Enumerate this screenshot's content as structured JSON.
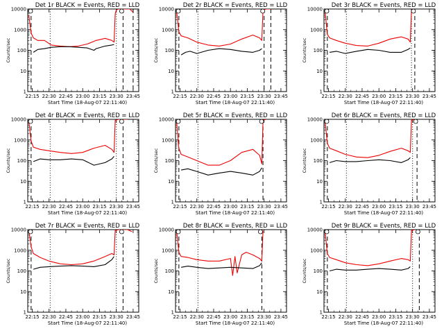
{
  "colors": {
    "events": "#000000",
    "lld": "#ee0000",
    "background": "#ffffff"
  },
  "charts_layout": "3x3 grid",
  "chart_data": [
    {
      "type": "line",
      "title": "Det 1r BLACK = Events, RED = LLD",
      "xlabel": "Start Time (18-Aug-07 22:11:40)",
      "ylabel": "Counts/sec",
      "yscale": "log",
      "ylim": [
        1,
        10000
      ],
      "ytick_labels": [
        "1",
        "10",
        "100",
        "1000",
        "10000"
      ],
      "xtick_labels": [
        "22:15",
        "22:30",
        "22:45",
        "23:00",
        "23:15",
        "23:30",
        "23:45"
      ],
      "series": [
        {
          "name": "LLD",
          "x": [
            "22:12",
            "22:14",
            "22:16",
            "22:20",
            "22:26",
            "22:32",
            "22:40",
            "22:48",
            "22:56",
            "23:04",
            "23:12",
            "23:20",
            "23:26",
            "23:28",
            "23:29",
            "23:30",
            "23:32",
            "23:36",
            "23:42",
            "23:45"
          ],
          "values": [
            5000,
            700,
            400,
            300,
            300,
            180,
            160,
            150,
            160,
            200,
            300,
            380,
            300,
            250,
            6000,
            9000,
            10000,
            10000,
            10000,
            7000
          ]
        },
        {
          "name": "Events",
          "x": [
            "22:16",
            "22:20",
            "22:26",
            "22:32",
            "22:40",
            "22:48",
            "22:56",
            "23:04",
            "23:10",
            "23:12",
            "23:20",
            "23:26",
            "23:28"
          ],
          "values": [
            80,
            110,
            120,
            140,
            150,
            150,
            140,
            130,
            100,
            120,
            160,
            180,
            190
          ]
        }
      ],
      "vlines_dashed": [
        "22:14",
        "23:36",
        "23:45"
      ],
      "vlines_dotted": [
        "22:31",
        "23:30"
      ]
    },
    {
      "type": "line",
      "title": "Det 2r BLACK = Events, RED = LLD",
      "xlabel": "Start Time (18-Aug-07 22:11:40)",
      "ylabel": "Counts/sec",
      "yscale": "log",
      "ylim": [
        1,
        10000
      ],
      "ytick_labels": [
        "1",
        "10",
        "100",
        "1000",
        "10000"
      ],
      "xtick_labels": [
        "22:15",
        "22:30",
        "22:45",
        "23:00",
        "23:15",
        "23:30",
        "23:45"
      ],
      "series": [
        {
          "name": "LLD",
          "x": [
            "22:12",
            "22:14",
            "22:16",
            "22:22",
            "22:30",
            "22:40",
            "22:50",
            "23:00",
            "23:10",
            "23:20",
            "23:26",
            "23:28",
            "23:29",
            "23:32",
            "23:36"
          ],
          "values": [
            8000,
            800,
            500,
            400,
            250,
            180,
            160,
            200,
            350,
            550,
            400,
            300,
            9000,
            10000,
            10000
          ]
        },
        {
          "name": "Events",
          "x": [
            "22:16",
            "22:20",
            "22:24",
            "22:30",
            "22:40",
            "22:50",
            "23:00",
            "23:10",
            "23:20",
            "23:26",
            "23:28"
          ],
          "values": [
            60,
            80,
            90,
            70,
            100,
            120,
            110,
            90,
            80,
            100,
            120
          ]
        }
      ],
      "vlines_dashed": [
        "22:14",
        "23:30",
        "23:36"
      ],
      "vlines_dotted": [
        "22:31"
      ]
    },
    {
      "type": "line",
      "title": "Det 3r BLACK = Events, RED = LLD",
      "xlabel": "Start Time (18-Aug-07 22:11:40)",
      "ylabel": "Counts/sec",
      "yscale": "log",
      "ylim": [
        1,
        10000
      ],
      "ytick_labels": [
        "1",
        "10",
        "100",
        "1000",
        "10000"
      ],
      "xtick_labels": [
        "22:15",
        "22:30",
        "22:45",
        "23:00",
        "23:15",
        "23:30",
        "23:45"
      ],
      "series": [
        {
          "name": "LLD",
          "x": [
            "22:12",
            "22:14",
            "22:16",
            "22:22",
            "22:30",
            "22:40",
            "22:50",
            "23:00",
            "23:10",
            "23:20",
            "23:26",
            "23:28",
            "23:29",
            "23:32"
          ],
          "values": [
            8000,
            600,
            400,
            300,
            220,
            170,
            160,
            220,
            350,
            450,
            350,
            250,
            9000,
            10000
          ]
        },
        {
          "name": "Events",
          "x": [
            "22:16",
            "22:22",
            "22:30",
            "22:40",
            "22:50",
            "23:00",
            "23:10",
            "23:20",
            "23:26",
            "23:28"
          ],
          "values": [
            80,
            90,
            70,
            90,
            110,
            100,
            80,
            80,
            110,
            130
          ]
        }
      ],
      "vlines_dashed": [
        "22:14",
        "23:32"
      ],
      "vlines_dotted": [
        "22:31",
        "23:29"
      ]
    },
    {
      "type": "line",
      "title": "Det 4r BLACK = Events, RED = LLD",
      "xlabel": "Start Time (18-Aug-07 22:11:40)",
      "ylabel": "Counts/sec",
      "yscale": "log",
      "ylim": [
        1,
        10000
      ],
      "ytick_labels": [
        "1",
        "10",
        "100",
        "1000",
        "10000"
      ],
      "xtick_labels": [
        "22:15",
        "22:30",
        "22:45",
        "23:00",
        "23:15",
        "23:30",
        "23:45"
      ],
      "series": [
        {
          "name": "LLD",
          "x": [
            "22:12",
            "22:14",
            "22:16",
            "22:22",
            "22:30",
            "22:40",
            "22:50",
            "23:00",
            "23:10",
            "23:20",
            "23:26",
            "23:28",
            "23:29",
            "23:32",
            "23:40"
          ],
          "values": [
            8000,
            900,
            450,
            350,
            300,
            250,
            220,
            250,
            400,
            550,
            350,
            250,
            9000,
            10000,
            10000
          ]
        },
        {
          "name": "Events",
          "x": [
            "22:16",
            "22:22",
            "22:30",
            "22:40",
            "22:50",
            "23:00",
            "23:10",
            "23:20",
            "23:26",
            "23:28"
          ],
          "values": [
            90,
            120,
            110,
            110,
            120,
            110,
            60,
            80,
            120,
            160
          ]
        }
      ],
      "vlines_dashed": [
        "22:14",
        "23:36"
      ],
      "vlines_dotted": [
        "22:31",
        "23:30"
      ]
    },
    {
      "type": "line",
      "title": "Det 5r BLACK = Events, RED = LLD",
      "xlabel": "Start Time (18-Aug-07 22:11:40)",
      "ylabel": "Counts/sec",
      "yscale": "log",
      "ylim": [
        1,
        10000
      ],
      "ytick_labels": [
        "1",
        "10",
        "100",
        "1000",
        "10000"
      ],
      "xtick_labels": [
        "22:15",
        "22:30",
        "22:45",
        "23:00",
        "23:15",
        "23:30",
        "23:45"
      ],
      "series": [
        {
          "name": "LLD",
          "x": [
            "22:12",
            "22:14",
            "22:16",
            "22:22",
            "22:30",
            "22:40",
            "22:50",
            "23:00",
            "23:10",
            "23:20",
            "23:26",
            "23:28",
            "23:29",
            "23:32"
          ],
          "values": [
            8000,
            400,
            200,
            150,
            100,
            60,
            60,
            100,
            250,
            350,
            180,
            70,
            9000,
            10000
          ]
        },
        {
          "name": "Events",
          "x": [
            "22:16",
            "22:22",
            "22:30",
            "22:40",
            "22:50",
            "23:00",
            "23:10",
            "23:20",
            "23:26",
            "23:28"
          ],
          "values": [
            35,
            40,
            30,
            20,
            25,
            30,
            25,
            20,
            30,
            45
          ]
        }
      ],
      "vlines_dashed": [
        "22:14",
        "23:29"
      ],
      "vlines_dotted": [
        "22:31"
      ]
    },
    {
      "type": "line",
      "title": "Det 6r BLACK = Events, RED = LLD",
      "xlabel": "Start Time (18-Aug-07 22:11:40)",
      "ylabel": "Counts/sec",
      "yscale": "log",
      "ylim": [
        1,
        10000
      ],
      "ytick_labels": [
        "1",
        "10",
        "100",
        "1000",
        "10000"
      ],
      "xtick_labels": [
        "22:15",
        "22:30",
        "22:45",
        "23:00",
        "23:15",
        "23:30",
        "23:45"
      ],
      "series": [
        {
          "name": "LLD",
          "x": [
            "22:12",
            "22:14",
            "22:16",
            "22:22",
            "22:30",
            "22:40",
            "22:50",
            "23:00",
            "23:10",
            "23:20",
            "23:26",
            "23:28",
            "23:29",
            "23:32"
          ],
          "values": [
            8000,
            700,
            400,
            300,
            200,
            150,
            140,
            180,
            280,
            400,
            300,
            250,
            9000,
            10000
          ]
        },
        {
          "name": "Events",
          "x": [
            "22:16",
            "22:22",
            "22:30",
            "22:40",
            "22:50",
            "23:00",
            "23:10",
            "23:20",
            "23:26",
            "23:28"
          ],
          "values": [
            80,
            100,
            90,
            90,
            100,
            110,
            100,
            80,
            110,
            140
          ]
        }
      ],
      "vlines_dashed": [
        "22:14",
        "23:34"
      ],
      "vlines_dotted": [
        "22:31",
        "23:30"
      ]
    },
    {
      "type": "line",
      "title": "Det 7r BLACK = Events, RED = LLD",
      "xlabel": "Start Time (18-Aug-07 22:11:40)",
      "ylabel": "Counts/sec",
      "yscale": "log",
      "ylim": [
        1,
        10000
      ],
      "ytick_labels": [
        "1",
        "10",
        "100",
        "1000",
        "10000"
      ],
      "xtick_labels": [
        "22:15",
        "22:30",
        "22:45",
        "23:00",
        "23:15",
        "23:30",
        "23:45"
      ],
      "series": [
        {
          "name": "LLD",
          "x": [
            "22:12",
            "22:14",
            "22:16",
            "22:22",
            "22:30",
            "22:40",
            "22:50",
            "23:00",
            "23:10",
            "23:20",
            "23:26",
            "23:28",
            "23:29",
            "23:32",
            "23:40",
            "23:44"
          ],
          "values": [
            9000,
            1500,
            700,
            450,
            300,
            220,
            200,
            220,
            300,
            500,
            700,
            600,
            9000,
            10000,
            10000,
            8000
          ]
        },
        {
          "name": "Events",
          "x": [
            "22:16",
            "22:22",
            "22:30",
            "22:40",
            "22:50",
            "23:00",
            "23:10",
            "23:20",
            "23:26",
            "23:28"
          ],
          "values": [
            120,
            150,
            160,
            170,
            180,
            170,
            160,
            200,
            350,
            500
          ]
        }
      ],
      "vlines_dashed": [
        "22:14",
        "23:36"
      ],
      "vlines_dotted": [
        "22:31",
        "23:30"
      ]
    },
    {
      "type": "line",
      "title": "Det 8r BLACK = Events, RED = LLD",
      "xlabel": "Start Time (18-Aug-07 22:11:40)",
      "ylabel": "Counts/sec",
      "yscale": "log",
      "ylim": [
        1,
        10000
      ],
      "ytick_labels": [
        "1",
        "10",
        "100",
        "1000",
        "10000"
      ],
      "xtick_labels": [
        "22:15",
        "22:30",
        "22:45",
        "23:00",
        "23:15",
        "23:30",
        "23:45"
      ],
      "series": [
        {
          "name": "LLD",
          "x": [
            "22:12",
            "22:14",
            "22:16",
            "22:22",
            "22:30",
            "22:40",
            "22:50",
            "23:00",
            "23:02",
            "23:04",
            "23:06",
            "23:10",
            "23:12",
            "23:14",
            "23:20",
            "23:26",
            "23:28",
            "23:29"
          ],
          "values": [
            9000,
            800,
            500,
            450,
            350,
            300,
            300,
            400,
            60,
            500,
            80,
            600,
            700,
            800,
            600,
            400,
            300,
            9000
          ]
        },
        {
          "name": "Events",
          "x": [
            "22:16",
            "22:22",
            "22:30",
            "22:40",
            "22:50",
            "23:00",
            "23:10",
            "23:20",
            "23:26",
            "23:28"
          ],
          "values": [
            150,
            170,
            150,
            130,
            140,
            150,
            140,
            130,
            180,
            250
          ]
        }
      ],
      "vlines_dashed": [
        "22:14",
        "23:28"
      ],
      "vlines_dotted": [
        "22:31"
      ]
    },
    {
      "type": "line",
      "title": "Det 9r BLACK = Events, RED = LLD",
      "xlabel": "Start Time (18-Aug-07 22:11:40)",
      "ylabel": "Counts/sec",
      "yscale": "log",
      "ylim": [
        1,
        10000
      ],
      "ytick_labels": [
        "1",
        "10",
        "100",
        "1000",
        "10000"
      ],
      "xtick_labels": [
        "22:15",
        "22:30",
        "22:45",
        "23:00",
        "23:15",
        "23:30",
        "23:45"
      ],
      "series": [
        {
          "name": "LLD",
          "x": [
            "22:12",
            "22:14",
            "22:16",
            "22:22",
            "22:30",
            "22:40",
            "22:50",
            "23:00",
            "23:10",
            "23:20",
            "23:26",
            "23:28",
            "23:29",
            "23:32"
          ],
          "values": [
            8000,
            700,
            450,
            350,
            250,
            200,
            180,
            220,
            300,
            400,
            350,
            300,
            9000,
            10000
          ]
        },
        {
          "name": "Events",
          "x": [
            "22:16",
            "22:22",
            "22:30",
            "22:40",
            "22:50",
            "23:00",
            "23:10",
            "23:20",
            "23:26",
            "23:28"
          ],
          "values": [
            100,
            120,
            110,
            110,
            120,
            130,
            120,
            110,
            130,
            160
          ]
        }
      ],
      "vlines_dashed": [
        "22:14",
        "23:36"
      ],
      "vlines_dotted": [
        "22:31",
        "23:30"
      ]
    }
  ]
}
